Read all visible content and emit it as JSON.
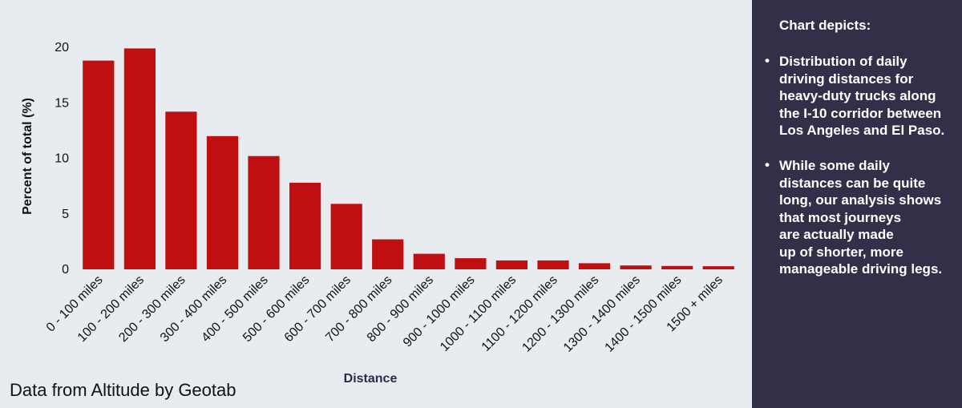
{
  "chart_data": {
    "type": "bar",
    "xlabel": "Distance",
    "ylabel": "Percent of total (%)",
    "ylim": [
      0,
      20
    ],
    "yticks": [
      0,
      5,
      10,
      15,
      20
    ],
    "grid": false,
    "bar_color": "#c00f10",
    "categories": [
      "0 - 100 miles",
      "100 - 200 miles",
      "200 - 300 miles",
      "300 - 400 miles",
      "400 - 500 miles",
      "500 - 600 miles",
      "600 - 700 miles",
      "700 - 800 miles",
      "800 - 900 miles",
      "900 - 1000 miles",
      "1000 - 1100 miles",
      "1100 - 1200 miles",
      "1200 - 1300 miles",
      "1300 - 1400 miles",
      "1400 - 1500 miles",
      "1500 + miles"
    ],
    "values": [
      18.8,
      19.9,
      14.2,
      12.0,
      10.2,
      7.8,
      5.9,
      2.7,
      1.4,
      1.0,
      0.8,
      0.8,
      0.55,
      0.35,
      0.3,
      0.28
    ]
  },
  "source_note": "Data from Altitude by Geotab",
  "panel": {
    "heading": "Chart depicts:",
    "bullet_symbol": "•",
    "bullets": [
      [
        "Distribution of daily",
        "driving distances for",
        "heavy-duty trucks along",
        "the I-10 corridor between",
        "Los Angeles and El Paso."
      ],
      [
        "While some daily",
        "distances can be quite",
        "long, our analysis shows",
        "that most journeys",
        "are actually made",
        "up of shorter, more",
        "manageable driving legs."
      ]
    ],
    "background": "#342f48"
  }
}
